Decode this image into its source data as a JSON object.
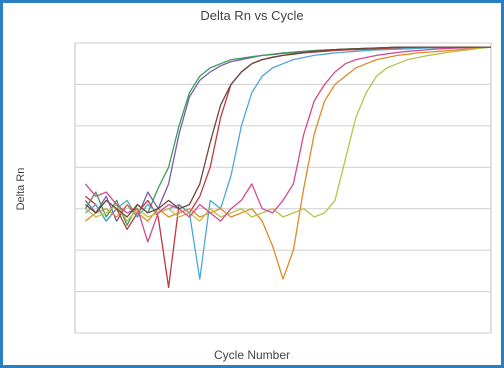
{
  "chart_data": {
    "type": "line",
    "title": "Delta Rn vs Cycle",
    "xlabel": "Cycle Number",
    "ylabel": "Delta Rn",
    "xlim": [
      0,
      40
    ],
    "ylim": [
      -0.0006,
      0.0001
    ],
    "grid": true,
    "log_scale": false,
    "legend": "none",
    "series": [
      {
        "color": "#7b5aa6",
        "x": [
          1,
          2,
          3,
          4,
          5,
          6,
          7,
          8,
          9,
          10,
          11,
          12,
          13,
          14,
          15,
          16,
          17,
          18,
          19,
          20,
          21,
          22,
          23,
          24,
          25,
          26,
          27,
          28,
          29,
          30,
          31,
          32,
          33,
          34,
          35,
          36,
          37,
          38,
          39,
          40
        ],
        "y": [
          -0.00028,
          -0.00031,
          -0.00027,
          -0.00033,
          -0.00029,
          -0.00032,
          -0.00026,
          -0.0003,
          -0.00024,
          -0.00012,
          -3e-05,
          1e-05,
          3e-05,
          4.5e-05,
          5.5e-05,
          6e-05,
          6.5e-05,
          7e-05,
          7.2e-05,
          7.5e-05,
          7.7e-05,
          7.9e-05,
          8.1e-05,
          8.3e-05,
          8.4e-05,
          8.5e-05,
          8.6e-05,
          8.7e-05,
          8.8e-05,
          8.9e-05,
          9e-05,
          9e-05,
          9e-05,
          9e-05,
          9e-05,
          9e-05,
          9e-05,
          9e-05,
          9e-05,
          9e-05
        ]
      },
      {
        "color": "#3a9e5f",
        "x": [
          1,
          2,
          3,
          4,
          5,
          6,
          7,
          8,
          9,
          10,
          11,
          12,
          13,
          14,
          15,
          16,
          17,
          18,
          19,
          20,
          21,
          22,
          23,
          24,
          25,
          26,
          27,
          28,
          29,
          30,
          31,
          32,
          33,
          34,
          35,
          36,
          37,
          38,
          39,
          40
        ],
        "y": [
          -0.0003,
          -0.00026,
          -0.00032,
          -0.00028,
          -0.00034,
          -0.00029,
          -0.00031,
          -0.00025,
          -0.0002,
          -0.0001,
          -2e-05,
          2e-05,
          4e-05,
          5e-05,
          6e-05,
          6.3e-05,
          6.7e-05,
          7e-05,
          7.3e-05,
          7.6e-05,
          7.8e-05,
          8e-05,
          8.2e-05,
          8.3e-05,
          8.4e-05,
          8.5e-05,
          8.6e-05,
          8.7e-05,
          8.8e-05,
          8.9e-05,
          9e-05,
          9e-05,
          9e-05,
          9e-05,
          9e-05,
          9e-05,
          9e-05,
          9e-05,
          9e-05,
          9e-05
        ]
      },
      {
        "color": "#c0393b",
        "x": [
          1,
          2,
          3,
          4,
          5,
          6,
          7,
          8,
          9,
          10,
          11,
          12,
          13,
          14,
          15,
          16,
          17,
          18,
          19,
          20,
          21,
          22,
          23,
          24,
          25,
          26,
          27,
          28,
          29,
          30,
          31,
          32,
          33,
          34,
          35,
          36,
          37,
          38,
          39,
          40
        ],
        "y": [
          -0.00027,
          -0.00029,
          -0.00033,
          -0.0003,
          -0.00035,
          -0.00031,
          -0.00028,
          -0.00032,
          -0.00049,
          -0.00029,
          -0.00031,
          -0.00027,
          -0.0002,
          -8e-05,
          0.0,
          3e-05,
          5e-05,
          6e-05,
          6.5e-05,
          7e-05,
          7.3e-05,
          7.6e-05,
          7.8e-05,
          8e-05,
          8.2e-05,
          8.3e-05,
          8.4e-05,
          8.5e-05,
          8.6e-05,
          8.7e-05,
          8.8e-05,
          8.9e-05,
          9e-05,
          9e-05,
          9e-05,
          9e-05,
          9e-05,
          9e-05,
          9e-05,
          9e-05
        ]
      },
      {
        "color": "#4aa8d8",
        "x": [
          1,
          2,
          3,
          4,
          5,
          6,
          7,
          8,
          9,
          10,
          11,
          12,
          13,
          14,
          15,
          16,
          17,
          18,
          19,
          20,
          21,
          22,
          23,
          24,
          25,
          26,
          27,
          28,
          29,
          30,
          31,
          32,
          33,
          34,
          35,
          36,
          37,
          38,
          39,
          40
        ],
        "y": [
          -0.00031,
          -0.00029,
          -0.00033,
          -0.0003,
          -0.00028,
          -0.00032,
          -0.00029,
          -0.00031,
          -0.0003,
          -0.00029,
          -0.00031,
          -0.00047,
          -0.00028,
          -0.0003,
          -0.00022,
          -0.0001,
          -2e-05,
          2e-05,
          4e-05,
          5e-05,
          6e-05,
          6.5e-05,
          7e-05,
          7.3e-05,
          7.6e-05,
          7.8e-05,
          8e-05,
          8.2e-05,
          8.3e-05,
          8.4e-05,
          8.5e-05,
          8.6e-05,
          8.7e-05,
          8.8e-05,
          8.9e-05,
          9e-05,
          9e-05,
          9e-05,
          9e-05,
          9e-05
        ]
      },
      {
        "color": "#e08a2a",
        "x": [
          1,
          2,
          3,
          4,
          5,
          6,
          7,
          8,
          9,
          10,
          11,
          12,
          13,
          14,
          15,
          16,
          17,
          18,
          19,
          20,
          21,
          22,
          23,
          24,
          25,
          26,
          27,
          28,
          29,
          30,
          31,
          32,
          33,
          34,
          35,
          36,
          37,
          38,
          39,
          40
        ],
        "y": [
          -0.00033,
          -0.00031,
          -0.0003,
          -0.00032,
          -0.00029,
          -0.00031,
          -0.00033,
          -0.0003,
          -0.00032,
          -0.00031,
          -0.0003,
          -0.00032,
          -0.00031,
          -0.0003,
          -0.00032,
          -0.00031,
          -0.0003,
          -0.00033,
          -0.00039,
          -0.00047,
          -0.0004,
          -0.00025,
          -0.00012,
          -4e-05,
          0.0,
          2e-05,
          4e-05,
          5e-05,
          6e-05,
          6.5e-05,
          7e-05,
          7.3e-05,
          7.6e-05,
          7.8e-05,
          8e-05,
          8.2e-05,
          8.4e-05,
          8.6e-05,
          8.8e-05,
          9e-05
        ]
      },
      {
        "color": "#b8c24a",
        "x": [
          1,
          2,
          3,
          4,
          5,
          6,
          7,
          8,
          9,
          10,
          11,
          12,
          13,
          14,
          15,
          16,
          17,
          18,
          19,
          20,
          21,
          22,
          23,
          24,
          25,
          26,
          27,
          28,
          29,
          30,
          31,
          32,
          33,
          34,
          35,
          36,
          37,
          38,
          39,
          40
        ],
        "y": [
          -0.0003,
          -0.00032,
          -0.00031,
          -0.00029,
          -0.00033,
          -0.0003,
          -0.00032,
          -0.00031,
          -0.0003,
          -0.00032,
          -0.00031,
          -0.00033,
          -0.0003,
          -0.00032,
          -0.00031,
          -0.0003,
          -0.00032,
          -0.00031,
          -0.0003,
          -0.00032,
          -0.00031,
          -0.0003,
          -0.00032,
          -0.00031,
          -0.00028,
          -0.00018,
          -8e-05,
          -2e-05,
          2e-05,
          4e-05,
          5e-05,
          6e-05,
          6.5e-05,
          7e-05,
          7.4e-05,
          7.8e-05,
          8.1e-05,
          8.4e-05,
          8.7e-05,
          9e-05
        ]
      },
      {
        "color": "#d34b8f",
        "x": [
          1,
          2,
          3,
          4,
          5,
          6,
          7,
          8,
          9,
          10,
          11,
          12,
          13,
          14,
          15,
          16,
          17,
          18,
          19,
          20,
          21,
          22,
          23,
          24,
          25,
          26,
          27,
          28,
          29,
          30,
          31,
          32,
          33,
          34,
          35,
          36,
          37,
          38,
          39,
          40
        ],
        "y": [
          -0.00024,
          -0.00027,
          -0.00026,
          -0.00029,
          -0.00031,
          -0.0003,
          -0.00038,
          -0.00031,
          -0.00029,
          -0.0003,
          -0.00032,
          -0.00029,
          -0.00031,
          -0.00033,
          -0.0003,
          -0.00028,
          -0.00024,
          -0.0003,
          -0.00031,
          -0.00028,
          -0.00024,
          -0.00012,
          -4e-05,
          0.0,
          3e-05,
          5e-05,
          6e-05,
          6.5e-05,
          7e-05,
          7.4e-05,
          7.7e-05,
          8e-05,
          8.2e-05,
          8.4e-05,
          8.6e-05,
          8.7e-05,
          8.8e-05,
          8.9e-05,
          9e-05,
          9e-05
        ]
      },
      {
        "color": "#6b4a3a",
        "x": [
          1,
          2,
          3,
          4,
          5,
          6,
          7,
          8,
          9,
          10,
          11,
          12,
          13,
          14,
          15,
          16,
          17,
          18,
          19,
          20,
          21,
          22,
          23,
          24,
          25,
          26,
          27,
          28,
          29,
          30,
          31,
          32,
          33,
          34,
          35,
          36,
          37,
          38,
          39,
          40
        ],
        "y": [
          -0.00029,
          -0.00031,
          -0.00028,
          -0.0003,
          -0.00032,
          -0.00029,
          -0.00031,
          -0.0003,
          -0.00028,
          -0.0003,
          -0.00029,
          -0.00024,
          -0.00014,
          -5e-05,
          0.0,
          3e-05,
          5e-05,
          6e-05,
          6.6e-05,
          7e-05,
          7.4e-05,
          7.7e-05,
          8e-05,
          8.2e-05,
          8.4e-05,
          8.5e-05,
          8.6e-05,
          8.7e-05,
          8.8e-05,
          8.9e-05,
          9e-05,
          9e-05,
          9e-05,
          9e-05,
          9e-05,
          9e-05,
          9e-05,
          9e-05,
          9e-05,
          9e-05
        ]
      }
    ]
  }
}
